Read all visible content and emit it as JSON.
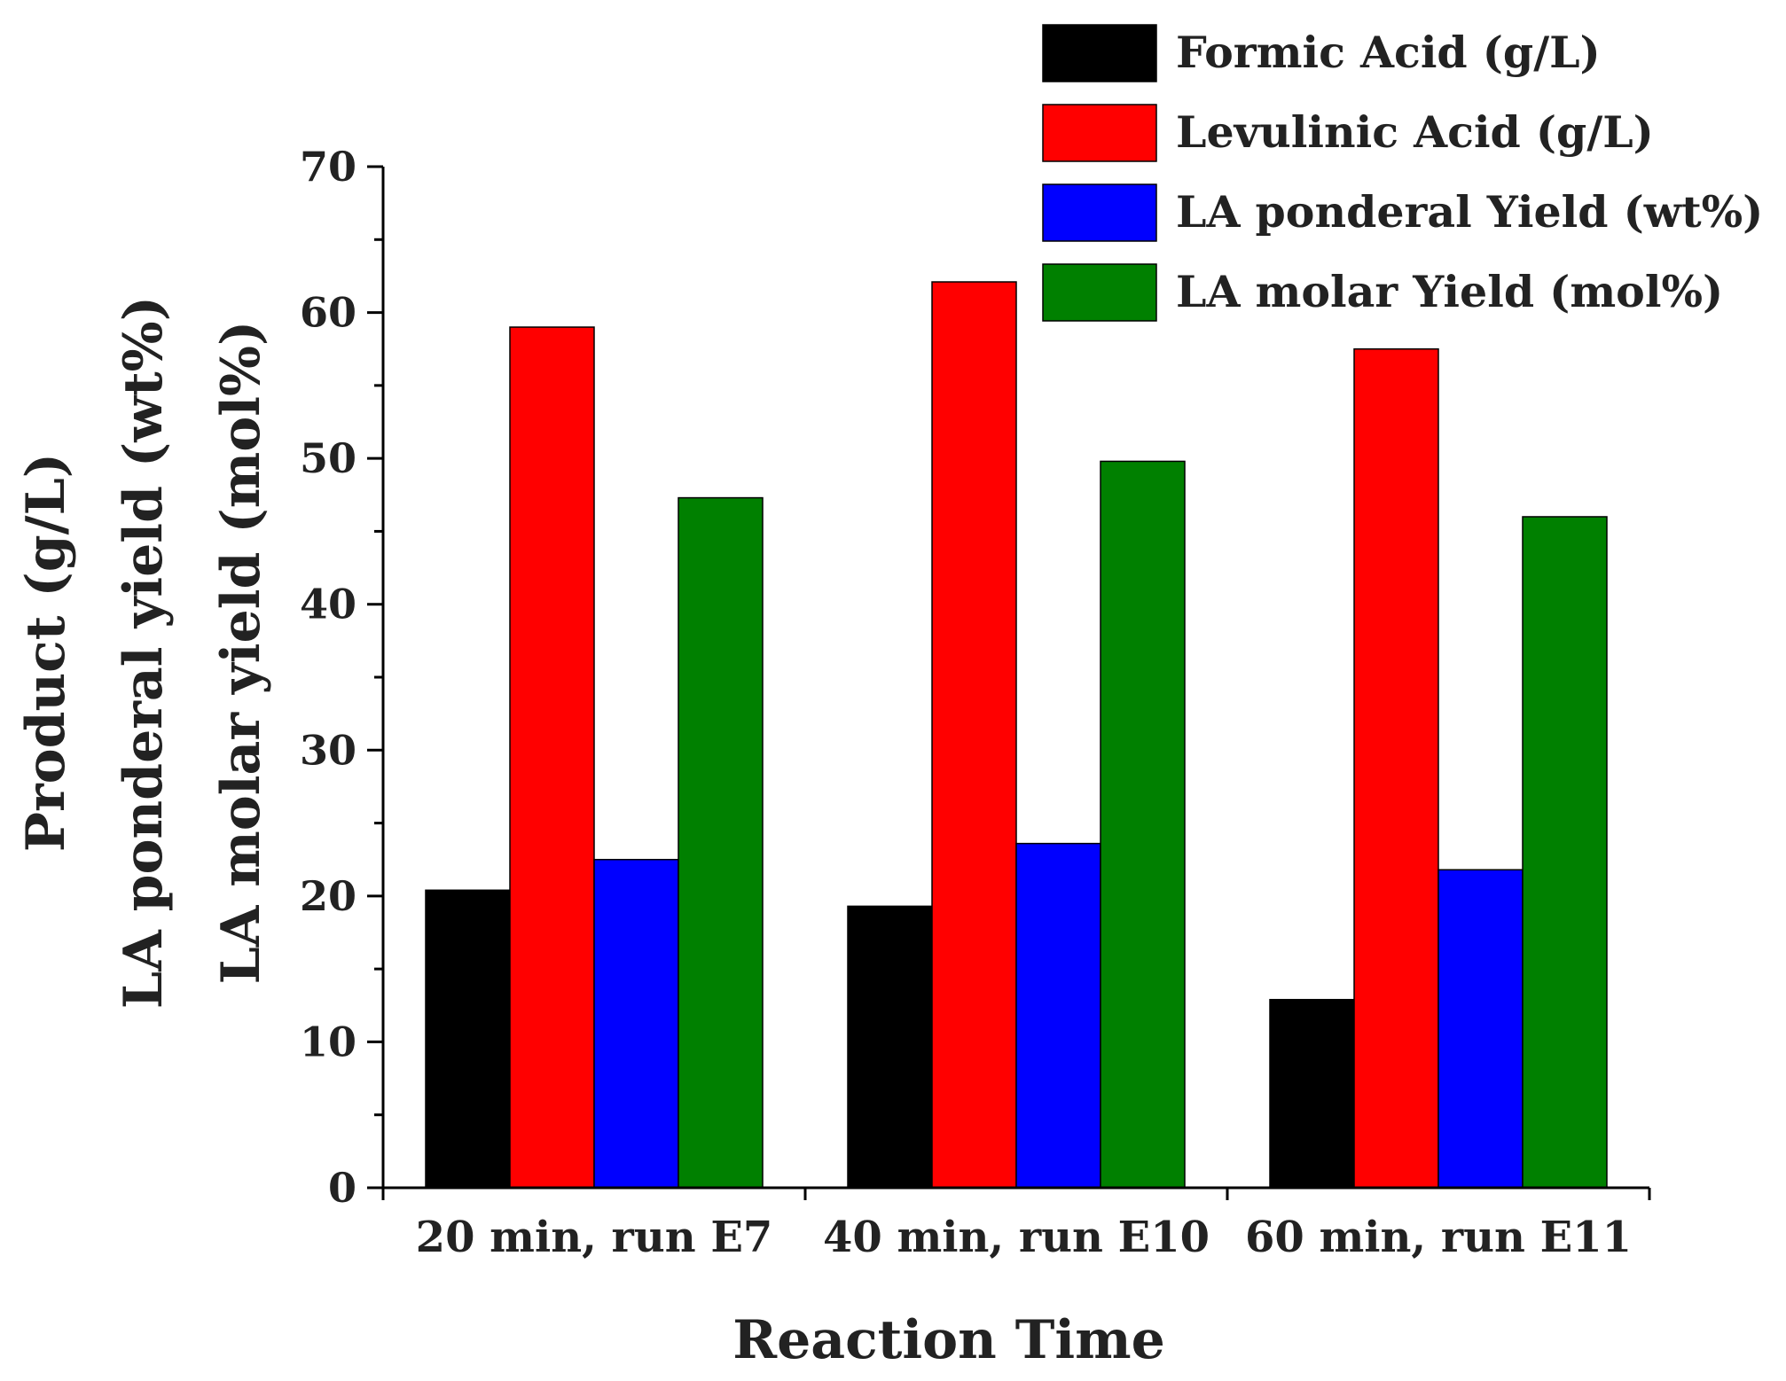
{
  "chart_data": {
    "type": "bar",
    "title": "",
    "xlabel": "Reaction Time",
    "ylabel_lines": [
      "Product (g/L)",
      "LA ponderal yield (wt%)",
      "LA molar yield (mol%)"
    ],
    "categories": [
      "20 min, run E7",
      "40 min, run E10",
      "60 min, run E11"
    ],
    "series": [
      {
        "name": "Formic Acid (g/L)",
        "color": "#000000",
        "values": [
          20.4,
          19.3,
          12.9
        ]
      },
      {
        "name": "Levulinic Acid (g/L)",
        "color": "#ff0000",
        "values": [
          59.0,
          62.1,
          57.5
        ]
      },
      {
        "name": "LA ponderal Yield (wt%)",
        "color": "#0000ff",
        "values": [
          22.5,
          23.6,
          21.8
        ]
      },
      {
        "name": "LA molar Yield (mol%)",
        "color": "#008000",
        "values": [
          47.3,
          49.8,
          46.0
        ]
      }
    ],
    "ylim": [
      0,
      70
    ],
    "yticks": [
      "0",
      "10",
      "20",
      "30",
      "40",
      "50",
      "60",
      "70"
    ],
    "legend_position": "top-right",
    "grid": false
  }
}
